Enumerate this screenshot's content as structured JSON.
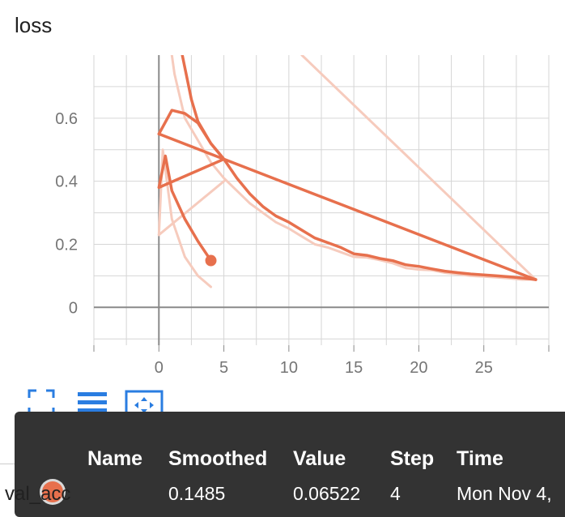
{
  "chart": {
    "title": "loss",
    "colors": {
      "main": "#e7704d",
      "faint": "#f6cbbd",
      "grid": "#d6d6d6",
      "axis": "#8a8a8a"
    }
  },
  "chart_data": {
    "type": "line",
    "title": "loss",
    "xlabel": "",
    "ylabel": "",
    "xlim": [
      -5,
      30
    ],
    "ylim": [
      -0.12,
      0.8
    ],
    "x_ticks": [
      "0",
      "5",
      "10",
      "15",
      "20",
      "25"
    ],
    "y_ticks": [
      "0",
      "0.2",
      "0.4",
      "0.6"
    ],
    "grid": true,
    "series": [
      {
        "role": "smoothed",
        "x": [
          1.8,
          2,
          2.5,
          3,
          4,
          5,
          6,
          7,
          8,
          9,
          10,
          11,
          12,
          13,
          14,
          15,
          16,
          17,
          18,
          19,
          20,
          21,
          22,
          23,
          24,
          25,
          26,
          27,
          28,
          29
        ],
        "y": [
          0.8,
          0.76,
          0.66,
          0.59,
          0.52,
          0.47,
          0.41,
          0.36,
          0.32,
          0.29,
          0.27,
          0.245,
          0.22,
          0.205,
          0.19,
          0.17,
          0.165,
          0.155,
          0.148,
          0.135,
          0.13,
          0.122,
          0.115,
          0.11,
          0.106,
          0.103,
          0.1,
          0.097,
          0.093,
          0.088
        ]
      },
      {
        "role": "smoothed",
        "x": [
          0,
          1,
          2,
          3,
          4,
          5,
          29
        ],
        "y": [
          0.55,
          0.625,
          0.615,
          0.585,
          0.52,
          0.47,
          0.088
        ]
      },
      {
        "role": "smoothed",
        "x": [
          0,
          5
        ],
        "y": [
          0.55,
          0.47
        ]
      },
      {
        "role": "smoothed",
        "x": [
          0,
          5,
          0,
          0.5,
          1,
          2,
          3,
          4
        ],
        "y": [
          0.38,
          0.47,
          0.38,
          0.48,
          0.37,
          0.28,
          0.21,
          0.1485
        ]
      },
      {
        "role": "raw",
        "x": [
          1,
          1.2,
          2,
          3,
          4,
          5,
          6,
          7,
          8,
          9,
          10,
          11,
          12,
          13,
          14,
          15,
          16,
          17,
          18,
          19,
          20,
          21,
          22,
          23,
          24,
          25,
          26,
          27,
          28,
          29
        ],
        "y": [
          0.8,
          0.74,
          0.6,
          0.53,
          0.46,
          0.41,
          0.37,
          0.33,
          0.3,
          0.27,
          0.25,
          0.225,
          0.2,
          0.19,
          0.175,
          0.16,
          0.158,
          0.15,
          0.14,
          0.125,
          0.12,
          0.118,
          0.11,
          0.105,
          0.1,
          0.098,
          0.095,
          0.092,
          0.088,
          0.09
        ]
      },
      {
        "role": "raw",
        "x": [
          11,
          29
        ],
        "y": [
          0.8,
          0.088
        ]
      },
      {
        "role": "raw",
        "x": [
          0,
          0.3,
          1,
          2,
          3,
          4
        ],
        "y": [
          0.23,
          0.5,
          0.28,
          0.16,
          0.1,
          0.065
        ]
      },
      {
        "role": "raw",
        "x": [
          0,
          5
        ],
        "y": [
          0.23,
          0.4
        ]
      }
    ],
    "highlight": {
      "x": 4,
      "y": 0.1485
    }
  },
  "toolbar": {
    "fullscreen_icon": "fullscreen-icon",
    "lines_icon": "menu-lines-icon",
    "fit_icon": "fit-domain-icon"
  },
  "tooltip": {
    "headers": {
      "name": "Name",
      "smoothed": "Smoothed",
      "value": "Value",
      "step": "Step",
      "time": "Time"
    },
    "row": {
      "name": "val_acc",
      "smoothed": "0.1485",
      "value": "0.06522",
      "step": "4",
      "time": "Mon Nov 4,"
    }
  }
}
